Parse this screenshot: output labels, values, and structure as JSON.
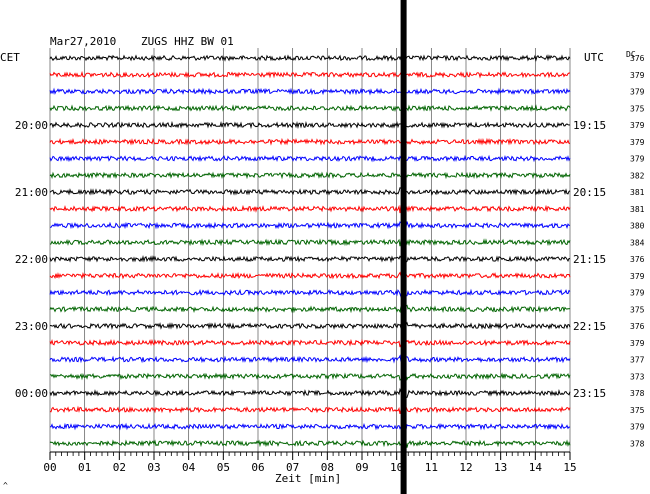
{
  "header": {
    "date": "Mar27,2010",
    "station": "ZUGS HHZ BW 01",
    "left_tz": "CET",
    "right_tz": "UTC",
    "dc_header": "DC"
  },
  "chart_data": {
    "type": "line",
    "xlabel": "Zeit [min]",
    "xlim": [
      0,
      15
    ],
    "x_ticks": [
      "00",
      "01",
      "02",
      "03",
      "04",
      "05",
      "06",
      "07",
      "08",
      "09",
      "10",
      "11",
      "12",
      "13",
      "14",
      "15"
    ],
    "left_time_labels": [
      "20:00",
      "21:00",
      "22:00",
      "23:00",
      "00:00"
    ],
    "right_time_labels": [
      "19:15",
      "20:15",
      "21:15",
      "22:15",
      "23:15"
    ],
    "trace_colors": [
      "#000000",
      "#ff0000",
      "#0000ff",
      "#006400"
    ],
    "dc_values": [
      "376",
      "379",
      "379",
      "375",
      "379",
      "379",
      "379",
      "382",
      "381",
      "381",
      "380",
      "384",
      "376",
      "379",
      "379",
      "375",
      "376",
      "379",
      "377",
      "373",
      "378",
      "375",
      "379",
      "378"
    ],
    "event": {
      "minute": 10.2,
      "color": "#000000"
    },
    "footer_mark": "^"
  }
}
